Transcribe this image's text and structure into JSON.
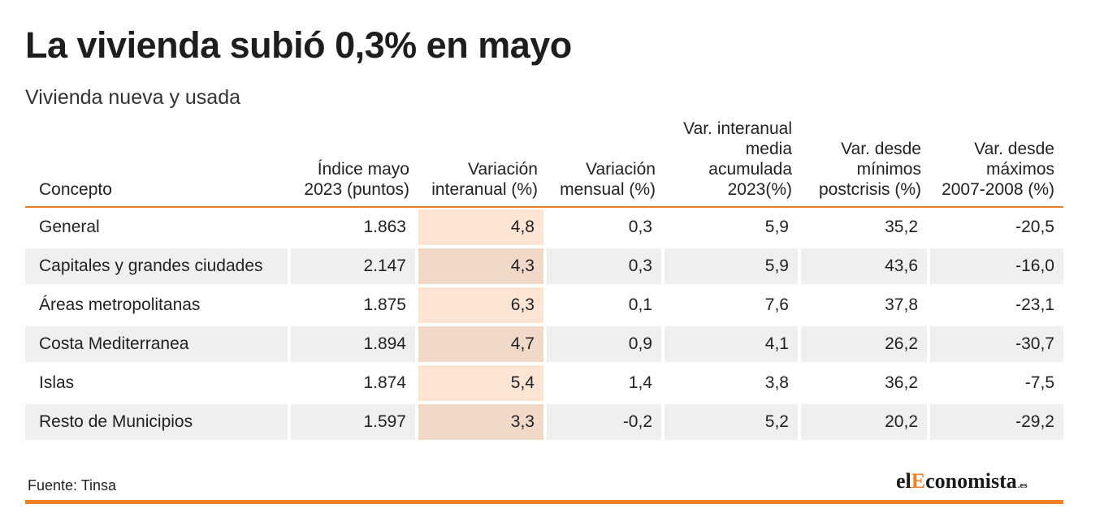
{
  "title": "La vivienda subió 0,3% en mayo",
  "subtitle": "Vivienda nueva y usada",
  "source": "Fuente: Tinsa",
  "logo": {
    "part1": "el",
    "part2": "E",
    "part3": "conomista",
    "tld": ".es"
  },
  "colors": {
    "accent": "#f07f25",
    "highlight_column": "#fde5d6",
    "row_alt": "#efefef"
  },
  "chart_data": {
    "type": "table",
    "title": "La vivienda subió 0,3% en mayo",
    "subtitle": "Vivienda nueva y usada",
    "highlighted_column": 2,
    "columns": [
      [
        "Concepto"
      ],
      [
        "Índice mayo",
        "2023 (puntos)"
      ],
      [
        "Variación",
        "interanual (%)"
      ],
      [
        "Variación",
        "mensual (%)"
      ],
      [
        "Var. interanual",
        "media",
        "acumulada",
        "2023(%)"
      ],
      [
        "Var. desde",
        "mínimos",
        "postcrisis (%)"
      ],
      [
        "Var. desde",
        "máximos",
        "2007-2008 (%)"
      ]
    ],
    "rows": [
      [
        "General",
        "1.863",
        "4,8",
        "0,3",
        "5,9",
        "35,2",
        "-20,5"
      ],
      [
        "Capitales y grandes ciudades",
        "2.147",
        "4,3",
        "0,3",
        "5,9",
        "43,6",
        "-16,0"
      ],
      [
        "Áreas metropolitanas",
        "1.875",
        "6,3",
        "0,1",
        "7,6",
        "37,8",
        "-23,1"
      ],
      [
        "Costa Mediterranea",
        "1.894",
        "4,7",
        "0,9",
        "4,1",
        "26,2",
        "-30,7"
      ],
      [
        "Islas",
        "1.874",
        "5,4",
        "1,4",
        "3,8",
        "36,2",
        "-7,5"
      ],
      [
        "Resto de Municipios",
        "1.597",
        "3,3",
        "-0,2",
        "5,2",
        "20,2",
        "-29,2"
      ]
    ]
  }
}
